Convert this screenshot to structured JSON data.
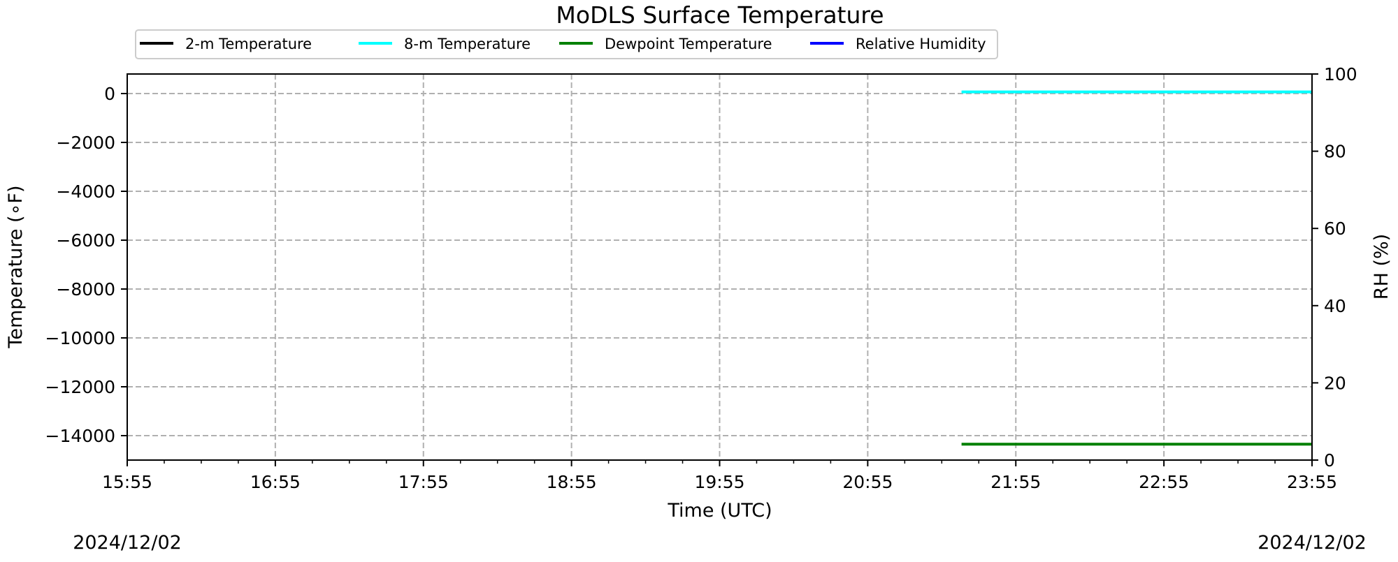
{
  "chart_data": {
    "type": "line",
    "title": "MoDLS Surface Temperature",
    "xlabel": "Time (UTC)",
    "ylabel": "Temperature (∘F)",
    "y2label": "RH (%)",
    "x_ticks": [
      "15:55",
      "16:55",
      "17:55",
      "18:55",
      "19:55",
      "20:55",
      "21:55",
      "22:55",
      "23:55"
    ],
    "x_range": [
      "15:55",
      "23:55"
    ],
    "date_labels": {
      "left": "2024/12/02",
      "right": "2024/12/02"
    },
    "ylim": [
      -15000,
      800
    ],
    "y_ticks": [
      0,
      -2000,
      -4000,
      -6000,
      -8000,
      -10000,
      -12000,
      -14000
    ],
    "y_tick_labels": [
      "0",
      "−2000",
      "−4000",
      "−6000",
      "−8000",
      "−10000",
      "−12000",
      "−14000"
    ],
    "y2lim": [
      0,
      100
    ],
    "y2_ticks": [
      0,
      20,
      40,
      60,
      80,
      100
    ],
    "y2_tick_labels": [
      "0",
      "20",
      "40",
      "60",
      "80",
      "100"
    ],
    "grid": true,
    "legend_position": "top",
    "series": [
      {
        "name": "2-m Temperature",
        "color": "#000000",
        "axis": "left",
        "x": [],
        "y": []
      },
      {
        "name": "8-m Temperature",
        "color": "#00ffff",
        "axis": "left",
        "x": [
          "21:33",
          "23:55"
        ],
        "y": [
          70,
          70
        ]
      },
      {
        "name": "Dewpoint Temperature",
        "color": "#008000",
        "axis": "left",
        "x": [
          "21:33",
          "23:55"
        ],
        "y": [
          -14350,
          -14350
        ]
      },
      {
        "name": "Relative Humidity",
        "color": "#0000ff",
        "axis": "right",
        "x": [],
        "y": []
      }
    ]
  }
}
